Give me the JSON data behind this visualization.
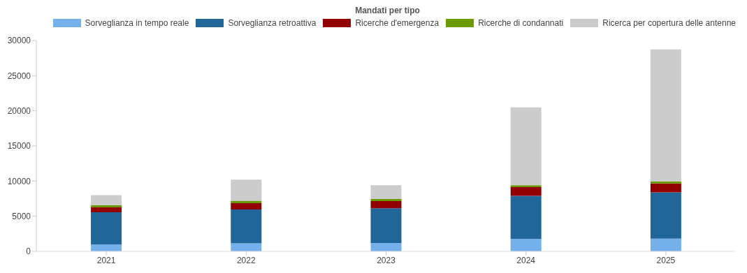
{
  "chart_data": {
    "type": "bar",
    "title": "Mandati per tipo",
    "stacked": true,
    "categories": [
      "2021",
      "2022",
      "2023",
      "2024",
      "2025"
    ],
    "series": [
      {
        "name": "Sorveglianza in tempo reale",
        "color": "#74b0ea",
        "values": [
          1000,
          1150,
          1190,
          1780,
          1810
        ]
      },
      {
        "name": "Sorveglianza retroattiva",
        "color": "#206699",
        "values": [
          4570,
          4820,
          4950,
          6110,
          6580
        ]
      },
      {
        "name": "Ricerche d'emergenza",
        "color": "#920000",
        "values": [
          700,
          890,
          1020,
          1250,
          1280
        ]
      },
      {
        "name": "Ricerche di condannati",
        "color": "#6a9a00",
        "values": [
          300,
          340,
          300,
          260,
          300
        ]
      },
      {
        "name": "Ricerca per copertura delle antenne",
        "color": "#cccccc",
        "values": [
          1430,
          3000,
          1940,
          11100,
          18770
        ]
      }
    ],
    "ylim": [
      0,
      30000
    ],
    "yticks": [
      0,
      5000,
      10000,
      15000,
      20000,
      25000,
      30000
    ],
    "grid": false,
    "legend": "top"
  }
}
